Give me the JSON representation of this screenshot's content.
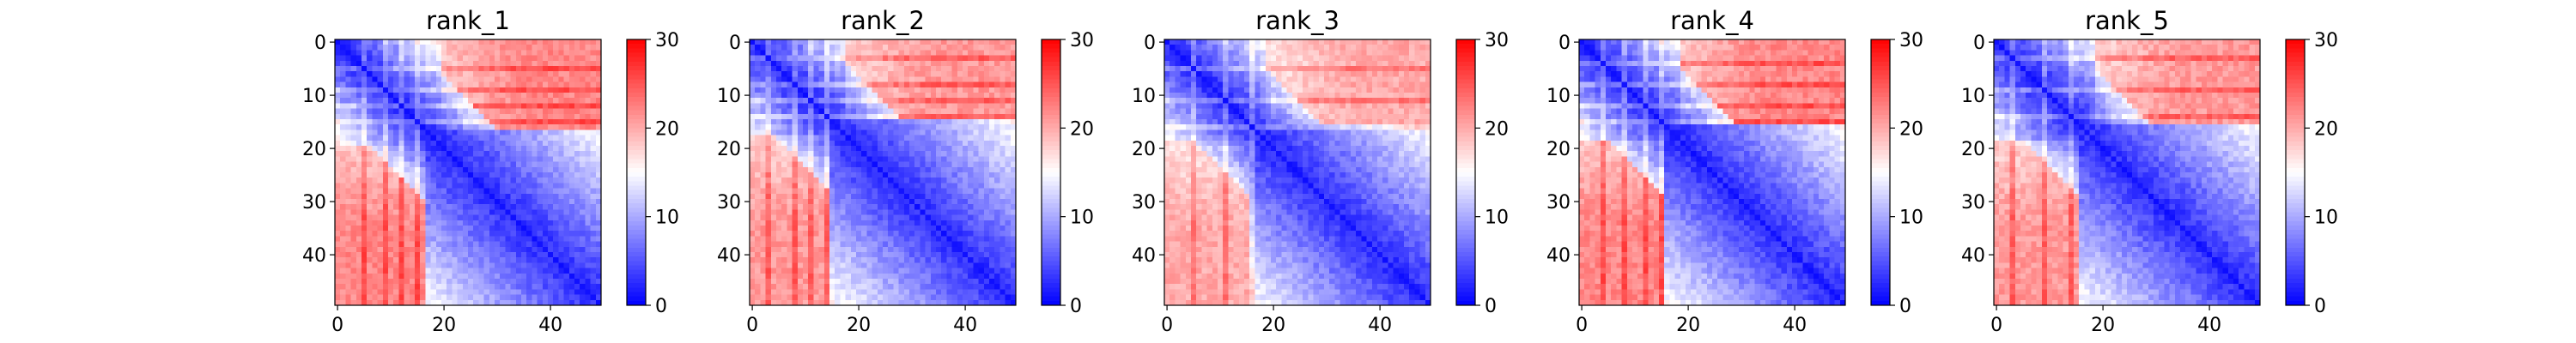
{
  "chart_data": {
    "type": "heatmap",
    "colormap": "bwr",
    "colors": {
      "low": "#0000ff",
      "mid": "#ffffff",
      "high": "#ff0000"
    },
    "size": 50,
    "vmin": 0,
    "vmax": 30,
    "x_ticks": [
      0,
      20,
      40
    ],
    "y_ticks": [
      0,
      10,
      20,
      30,
      40
    ],
    "colorbar_ticks": [
      0,
      10,
      20,
      30
    ],
    "panels": [
      {
        "title": "rank_1",
        "split": 17,
        "offdiag_block": 20,
        "far_value": 25,
        "near_growth": 0.62,
        "stripes": [
          5,
          9,
          12,
          15
        ]
      },
      {
        "title": "rank_2",
        "split": 15,
        "offdiag_block": 19,
        "far_value": 25,
        "near_growth": 0.6,
        "stripes": [
          3,
          8,
          11,
          14
        ]
      },
      {
        "title": "rank_3",
        "split": 16,
        "offdiag_block": 18,
        "far_value": 23,
        "near_growth": 0.58,
        "stripes": [
          5,
          11,
          16
        ]
      },
      {
        "title": "rank_4",
        "split": 16,
        "offdiag_block": 20,
        "far_value": 25,
        "near_growth": 0.6,
        "stripes": [
          4,
          8,
          12,
          15
        ]
      },
      {
        "title": "rank_5",
        "split": 16,
        "offdiag_block": 19,
        "far_value": 26,
        "near_growth": 0.55,
        "stripes": [
          3,
          9,
          14
        ]
      }
    ]
  }
}
